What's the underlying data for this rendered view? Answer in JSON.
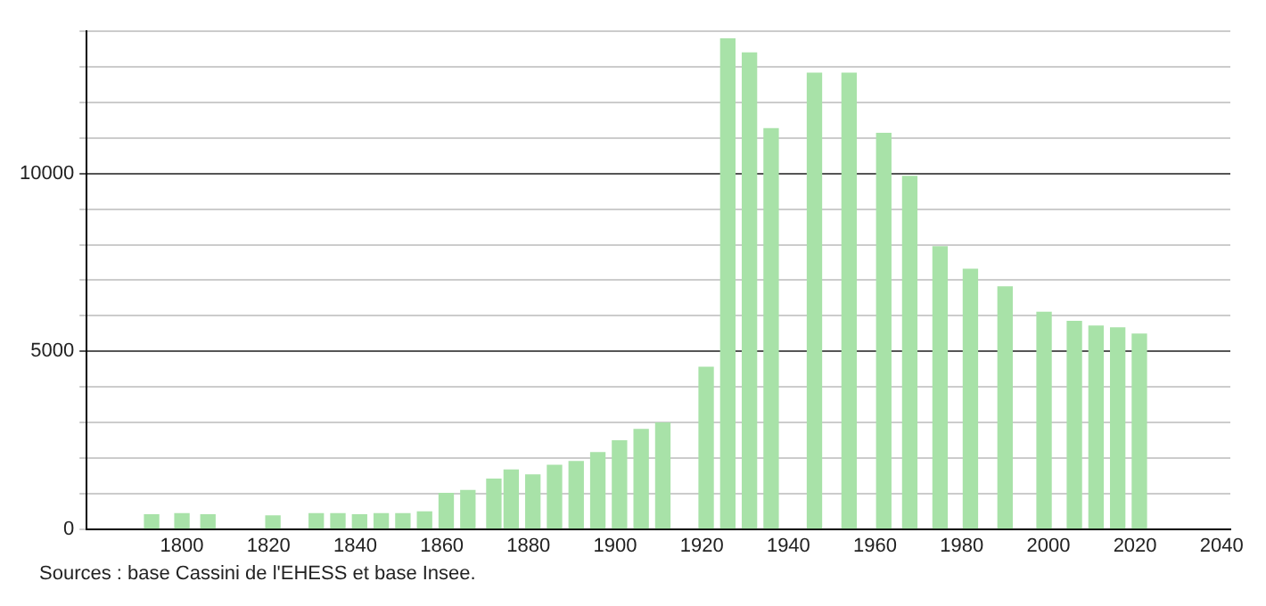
{
  "chart_data": {
    "type": "bar",
    "color": "#a8e2a8",
    "x": [
      1793,
      1800,
      1806,
      1821,
      1831,
      1836,
      1841,
      1846,
      1851,
      1856,
      1861,
      1866,
      1872,
      1876,
      1881,
      1886,
      1891,
      1896,
      1901,
      1906,
      1911,
      1921,
      1926,
      1931,
      1936,
      1946,
      1954,
      1962,
      1968,
      1975,
      1982,
      1990,
      1999,
      2006,
      2011,
      2016,
      2021
    ],
    "values": [
      400,
      430,
      400,
      370,
      430,
      430,
      400,
      430,
      430,
      480,
      1000,
      1080,
      1400,
      1660,
      1520,
      1790,
      1900,
      2150,
      2480,
      2800,
      2980,
      4550,
      13790,
      13390,
      11260,
      12820,
      12820,
      11130,
      9920,
      7940,
      7310,
      6810,
      6100,
      5840,
      5710,
      5660,
      5480
    ],
    "xlim": [
      1778,
      2042
    ],
    "xticks": [
      1800,
      1820,
      1840,
      1860,
      1880,
      1900,
      1920,
      1940,
      1960,
      1980,
      2000,
      2020,
      2040
    ],
    "ylim": [
      0,
      14000
    ],
    "yticks": [
      0,
      {
        "value": 1000,
        "label": null
      },
      {
        "value": 2000,
        "label": null
      },
      {
        "value": 3000,
        "label": null
      },
      {
        "value": 4000,
        "label": null
      },
      5000,
      {
        "value": 6000,
        "label": null
      },
      {
        "value": 7000,
        "label": null
      },
      {
        "value": 8000,
        "label": null
      },
      {
        "value": 9000,
        "label": null
      },
      10000,
      {
        "value": 11000,
        "label": null
      },
      {
        "value": 12000,
        "label": null
      },
      {
        "value": 13000,
        "label": null
      },
      {
        "value": 14000,
        "label": null
      }
    ],
    "grid": "y",
    "annotations": [
      "Sources : base Cassini de l'EHESS et base Insee."
    ]
  }
}
